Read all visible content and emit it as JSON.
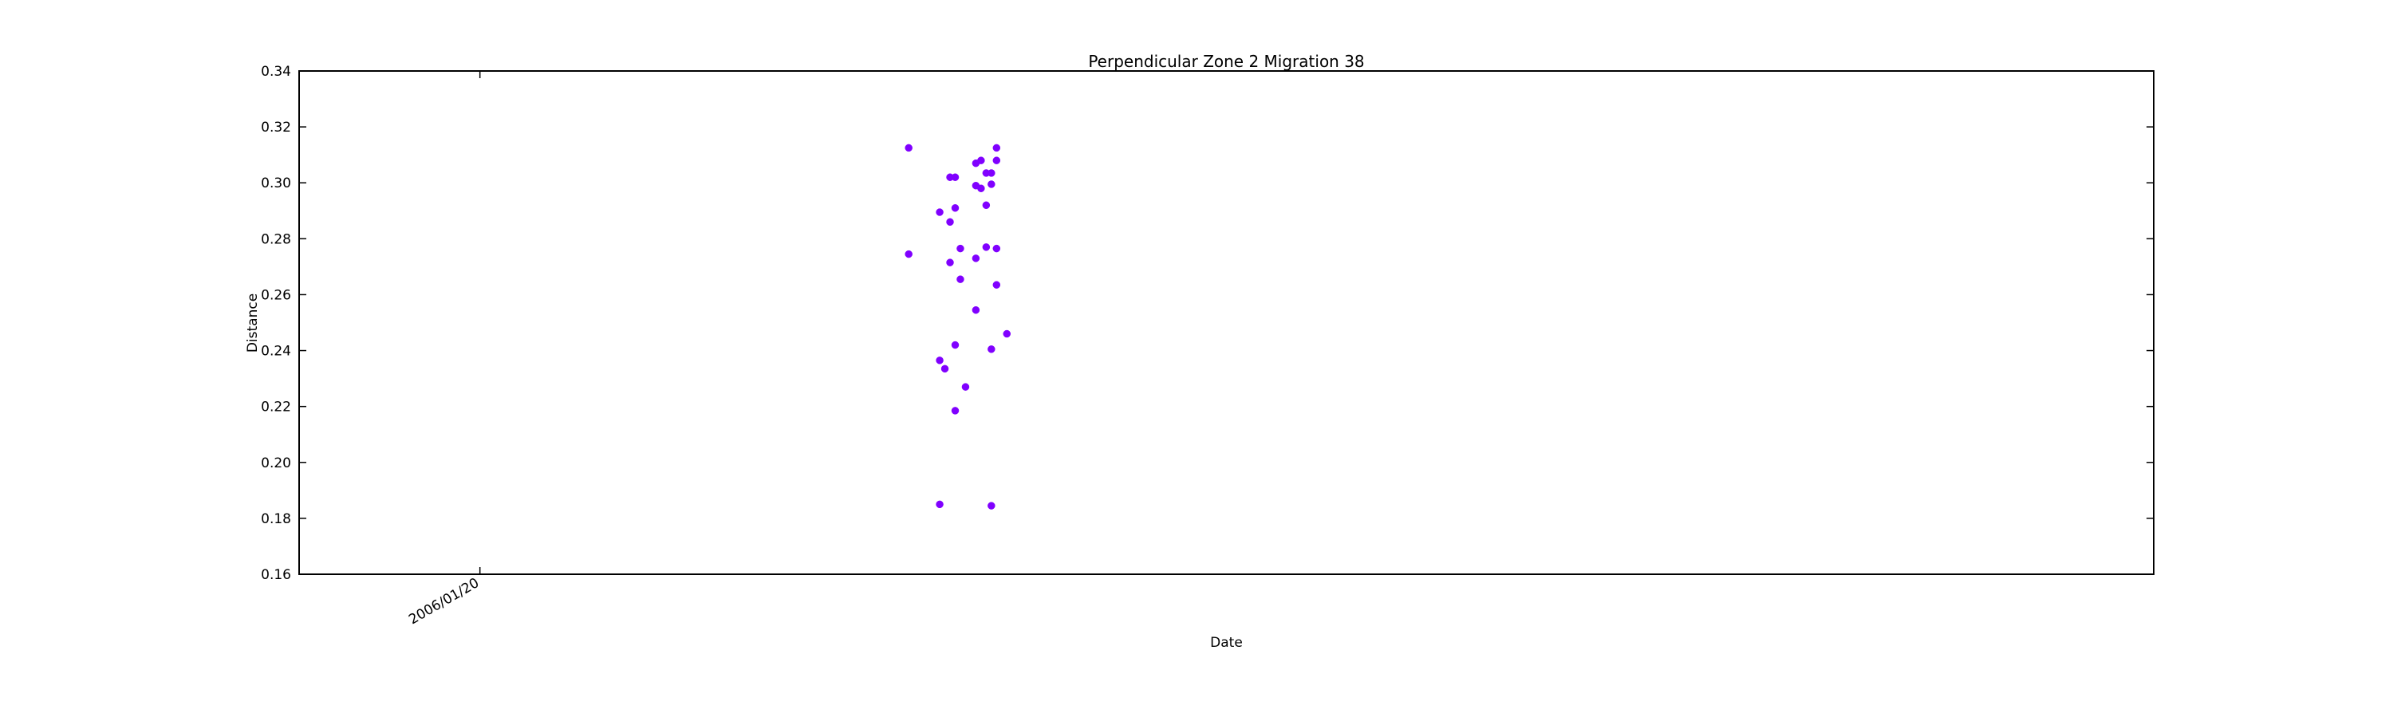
{
  "chart_data": {
    "type": "scatter",
    "title": "Perpendicular Zone 2 Migration 38",
    "xlabel": "Date",
    "ylabel": "Distance",
    "ylim": [
      0.16,
      0.34
    ],
    "yticks": [
      "0.16",
      "0.18",
      "0.20",
      "0.22",
      "0.24",
      "0.26",
      "0.28",
      "0.30",
      "0.32",
      "0.34"
    ],
    "xlim": [
      "2005/12/16",
      "2006/12/10"
    ],
    "xticks": [
      {
        "date": "2006/01/20",
        "label": "2006/01/20"
      }
    ],
    "grid": false,
    "marker_color": "#8000ff",
    "series": [
      {
        "points": [
          {
            "x": "2006/04/13",
            "y": 0.3125
          },
          {
            "x": "2006/04/13",
            "y": 0.2745
          },
          {
            "x": "2006/04/19",
            "y": 0.185
          },
          {
            "x": "2006/04/19",
            "y": 0.2895
          },
          {
            "x": "2006/04/19",
            "y": 0.2365
          },
          {
            "x": "2006/04/20",
            "y": 0.2335
          },
          {
            "x": "2006/04/21",
            "y": 0.302
          },
          {
            "x": "2006/04/21",
            "y": 0.286
          },
          {
            "x": "2006/04/21",
            "y": 0.2715
          },
          {
            "x": "2006/04/22",
            "y": 0.302
          },
          {
            "x": "2006/04/22",
            "y": 0.291
          },
          {
            "x": "2006/04/22",
            "y": 0.2185
          },
          {
            "x": "2006/04/22",
            "y": 0.242
          },
          {
            "x": "2006/04/23",
            "y": 0.2765
          },
          {
            "x": "2006/04/23",
            "y": 0.2655
          },
          {
            "x": "2006/04/24",
            "y": 0.227
          },
          {
            "x": "2006/04/26",
            "y": 0.2545
          },
          {
            "x": "2006/04/26",
            "y": 0.273
          },
          {
            "x": "2006/04/26",
            "y": 0.299
          },
          {
            "x": "2006/04/26",
            "y": 0.307
          },
          {
            "x": "2006/04/27",
            "y": 0.308
          },
          {
            "x": "2006/04/27",
            "y": 0.298
          },
          {
            "x": "2006/04/28",
            "y": 0.3035
          },
          {
            "x": "2006/04/28",
            "y": 0.277
          },
          {
            "x": "2006/04/28",
            "y": 0.292
          },
          {
            "x": "2006/04/29",
            "y": 0.2995
          },
          {
            "x": "2006/04/29",
            "y": 0.1845
          },
          {
            "x": "2006/04/29",
            "y": 0.2405
          },
          {
            "x": "2006/04/29",
            "y": 0.3035
          },
          {
            "x": "2006/04/30",
            "y": 0.3125
          },
          {
            "x": "2006/04/30",
            "y": 0.308
          },
          {
            "x": "2006/04/30",
            "y": 0.2765
          },
          {
            "x": "2006/04/30",
            "y": 0.2635
          },
          {
            "x": "2006/05/02",
            "y": 0.246
          }
        ]
      }
    ]
  }
}
